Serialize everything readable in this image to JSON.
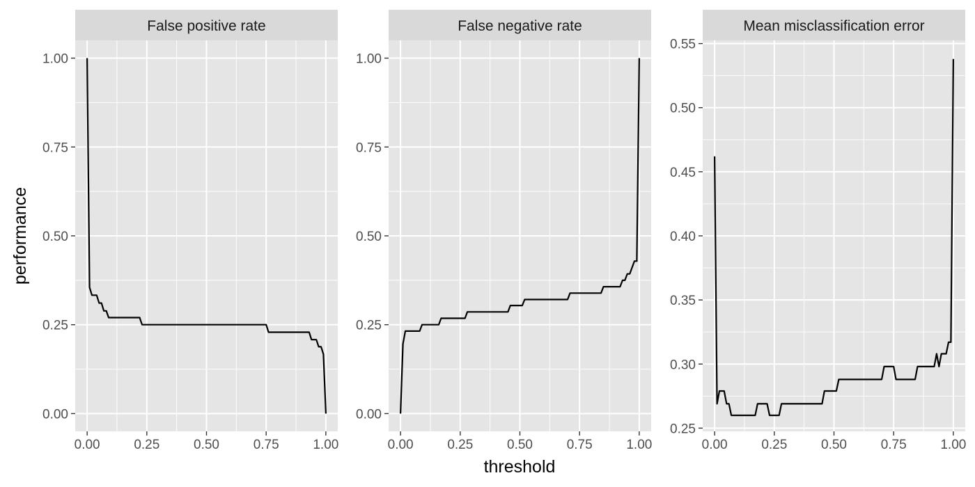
{
  "chart_data": {
    "type": "line",
    "xlabel": "threshold",
    "ylabel": "performance",
    "colors": {
      "panel_background": "#e5e5e5",
      "strip_background": "#d9d9d9",
      "grid": "#ffffff",
      "line": "#000000"
    },
    "panels": [
      {
        "title": "False positive rate",
        "xlim": [
          -0.05,
          1.05
        ],
        "ylim": [
          -0.05,
          1.05
        ],
        "x_ticks": [
          "0.00",
          "0.25",
          "0.50",
          "0.75",
          "1.00"
        ],
        "y_ticks": [
          "0.00",
          "0.25",
          "0.50",
          "0.75",
          "1.00"
        ],
        "x": [
          0.0,
          0.01,
          0.02,
          0.04,
          0.05,
          0.06,
          0.07,
          0.08,
          0.09,
          0.1,
          0.22,
          0.23,
          0.24,
          0.75,
          0.76,
          0.93,
          0.94,
          0.96,
          0.97,
          0.98,
          0.99,
          1.0
        ],
        "y": [
          1.0,
          0.355,
          0.333,
          0.333,
          0.311,
          0.311,
          0.289,
          0.289,
          0.27,
          0.27,
          0.27,
          0.25,
          0.25,
          0.25,
          0.229,
          0.229,
          0.208,
          0.208,
          0.188,
          0.188,
          0.167,
          0.0
        ]
      },
      {
        "title": "False negative rate",
        "xlim": [
          -0.05,
          1.05
        ],
        "ylim": [
          -0.05,
          1.05
        ],
        "x_ticks": [
          "0.00",
          "0.25",
          "0.50",
          "0.75",
          "1.00"
        ],
        "y_ticks": [
          "0.00",
          "0.25",
          "0.50",
          "0.75",
          "1.00"
        ],
        "x": [
          0.0,
          0.01,
          0.02,
          0.08,
          0.09,
          0.16,
          0.17,
          0.27,
          0.28,
          0.45,
          0.46,
          0.51,
          0.52,
          0.7,
          0.71,
          0.84,
          0.85,
          0.92,
          0.93,
          0.94,
          0.95,
          0.96,
          0.97,
          0.98,
          0.99,
          1.0
        ],
        "y": [
          0.0,
          0.196,
          0.232,
          0.232,
          0.25,
          0.25,
          0.268,
          0.268,
          0.286,
          0.286,
          0.304,
          0.304,
          0.321,
          0.321,
          0.339,
          0.339,
          0.357,
          0.357,
          0.375,
          0.375,
          0.393,
          0.393,
          0.411,
          0.429,
          0.429,
          1.0
        ]
      },
      {
        "title": "Mean misclassification error",
        "xlim": [
          -0.05,
          1.05
        ],
        "ylim": [
          0.2475,
          0.5525
        ],
        "x_ticks": [
          "0.00",
          "0.25",
          "0.50",
          "0.75",
          "1.00"
        ],
        "y_ticks": [
          "0.25",
          "0.30",
          "0.35",
          "0.40",
          "0.45",
          "0.50",
          "0.55"
        ],
        "x": [
          0.0,
          0.01,
          0.02,
          0.04,
          0.05,
          0.06,
          0.07,
          0.17,
          0.18,
          0.22,
          0.23,
          0.27,
          0.28,
          0.45,
          0.46,
          0.51,
          0.52,
          0.7,
          0.71,
          0.75,
          0.76,
          0.84,
          0.85,
          0.92,
          0.93,
          0.94,
          0.95,
          0.97,
          0.98,
          0.99,
          1.0
        ],
        "y": [
          0.462,
          0.269,
          0.279,
          0.279,
          0.269,
          0.269,
          0.26,
          0.26,
          0.269,
          0.269,
          0.26,
          0.26,
          0.269,
          0.269,
          0.279,
          0.279,
          0.288,
          0.288,
          0.298,
          0.298,
          0.288,
          0.288,
          0.298,
          0.298,
          0.308,
          0.298,
          0.308,
          0.308,
          0.317,
          0.317,
          0.538
        ]
      }
    ]
  }
}
